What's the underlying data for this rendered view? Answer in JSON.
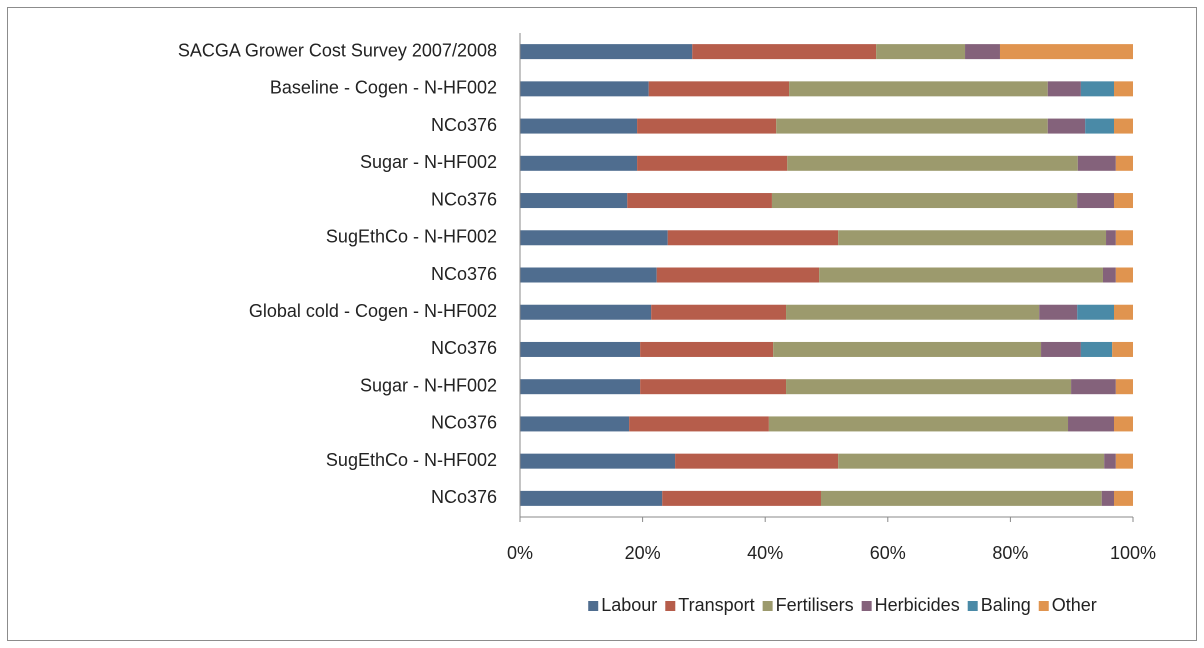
{
  "chart_data": {
    "type": "stacked-bar-horizontal",
    "categories": [
      "SACGA Grower Cost Survey 2007/2008",
      "Baseline - Cogen - N-HF002",
      "NCo376",
      "Sugar - N-HF002",
      "NCo376",
      "SugEthCo - N-HF002",
      "NCo376",
      "Global cold - Cogen - N-HF002",
      "NCo376",
      "Sugar - N-HF002",
      "NCo376",
      "SugEthCo - N-HF002",
      "NCo376"
    ],
    "series": [
      {
        "name": "Labour",
        "color": "#4f6d8f",
        "values": [
          28.1,
          21.0,
          19.1,
          19.1,
          17.5,
          24.1,
          22.3,
          21.4,
          19.6,
          19.6,
          17.8,
          25.3,
          23.2
        ]
      },
      {
        "name": "Transport",
        "color": "#b65d4b",
        "values": [
          30.0,
          22.9,
          22.7,
          24.5,
          23.6,
          27.8,
          26.5,
          22.0,
          21.7,
          23.8,
          22.8,
          26.6,
          25.9
        ]
      },
      {
        "name": "Fertilisers",
        "color": "#9c9a6d",
        "values": [
          14.5,
          42.2,
          44.3,
          47.4,
          49.8,
          43.7,
          46.3,
          41.3,
          43.7,
          46.5,
          48.8,
          43.4,
          45.8
        ]
      },
      {
        "name": "Herbicides",
        "color": "#84627b",
        "values": [
          5.7,
          5.4,
          6.1,
          6.2,
          6.0,
          1.6,
          2.1,
          6.2,
          6.5,
          7.3,
          7.5,
          1.9,
          2.0
        ]
      },
      {
        "name": "Baling",
        "color": "#4a8aa7",
        "values": [
          0,
          5.4,
          4.7,
          0,
          0,
          0,
          0,
          6.0,
          5.1,
          0,
          0,
          0,
          0
        ]
      },
      {
        "name": "Other",
        "color": "#e0944f",
        "values": [
          21.7,
          3.1,
          3.1,
          2.8,
          3.1,
          2.8,
          2.8,
          3.1,
          3.4,
          2.8,
          3.1,
          2.8,
          3.1
        ]
      }
    ],
    "xlim": [
      0,
      100
    ],
    "xticks": [
      {
        "value": 0,
        "label": "0%"
      },
      {
        "value": 20,
        "label": "20%"
      },
      {
        "value": 40,
        "label": "40%"
      },
      {
        "value": 60,
        "label": "60%"
      },
      {
        "value": 80,
        "label": "80%"
      },
      {
        "value": 100,
        "label": "100%"
      }
    ],
    "grid": false,
    "legend": "bottom"
  }
}
